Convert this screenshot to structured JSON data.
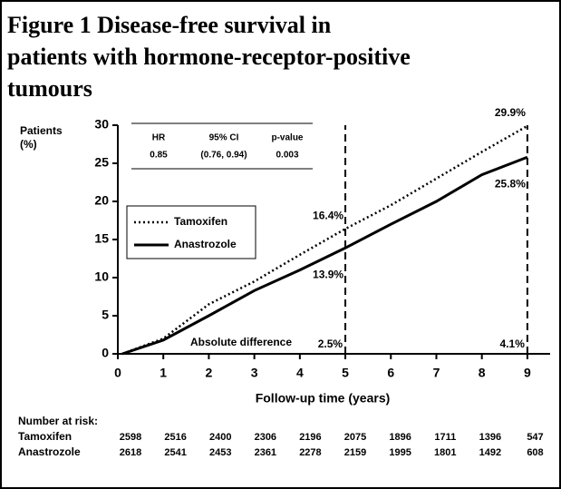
{
  "chart_data": {
    "type": "line",
    "title_lines": [
      "Figure 1        Disease-free survival in",
      "patients with hormone-receptor-positive",
      "tumours"
    ],
    "y_label_lines": [
      "Patients",
      "(%)"
    ],
    "x_label": "Follow-up time (years)",
    "x": [
      0.1,
      1,
      2,
      3,
      4,
      5,
      6,
      7,
      8,
      9
    ],
    "series": [
      {
        "name": "Tamoxifen",
        "color": "#000000",
        "dash": "dotted",
        "values": [
          0,
          2,
          6.5,
          9.5,
          13,
          16.4,
          19.5,
          23,
          26.5,
          29.9
        ],
        "value_labels": [
          null,
          null,
          null,
          null,
          null,
          "16.4%",
          null,
          null,
          null,
          "29.9%"
        ]
      },
      {
        "name": "Anastrozole",
        "color": "#000000",
        "dash": "solid",
        "values": [
          0,
          1.8,
          5,
          8.3,
          11,
          13.9,
          17,
          20,
          23.5,
          25.8
        ],
        "value_labels": [
          null,
          null,
          null,
          null,
          null,
          "13.9%",
          null,
          null,
          null,
          "25.8%"
        ]
      }
    ],
    "xlim": [
      0,
      9.5
    ],
    "xticks": [
      0,
      1,
      2,
      3,
      4,
      5,
      6,
      7,
      8,
      9
    ],
    "ylim": [
      0,
      30
    ],
    "yticks": [
      0,
      5,
      10,
      15,
      20,
      25,
      30
    ],
    "differences": {
      "label": "Absolute difference",
      "x": [
        5,
        9
      ],
      "values": [
        2.5,
        4.1
      ],
      "value_labels": [
        "2.5%",
        "4.1%"
      ]
    },
    "stats_table": {
      "header": [
        "HR",
        "95% CI",
        "p-value"
      ],
      "row": [
        "0.85",
        "(0.76, 0.94)",
        "0.003"
      ]
    },
    "risk_table": {
      "title": "Number at risk:",
      "rows": [
        {
          "name": "Tamoxifen",
          "values": [
            "2598",
            "2516",
            "2400",
            "2306",
            "2196",
            "2075",
            "1896",
            "1711",
            "1396",
            "547"
          ]
        },
        {
          "name": "Anastrozole",
          "values": [
            "2618",
            "2541",
            "2453",
            "2361",
            "2278",
            "2159",
            "1995",
            "1801",
            "1492",
            "608"
          ]
        }
      ]
    }
  }
}
